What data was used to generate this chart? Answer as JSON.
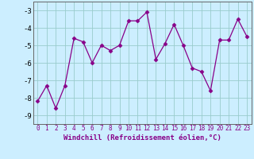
{
  "x": [
    0,
    1,
    2,
    3,
    4,
    5,
    6,
    7,
    8,
    9,
    10,
    11,
    12,
    13,
    14,
    15,
    16,
    17,
    18,
    19,
    20,
    21,
    22,
    23
  ],
  "y": [
    -8.2,
    -7.3,
    -8.6,
    -7.3,
    -4.6,
    -4.8,
    -6.0,
    -5.0,
    -5.3,
    -5.0,
    -3.6,
    -3.6,
    -3.1,
    -5.8,
    -4.9,
    -3.8,
    -5.0,
    -6.3,
    -6.5,
    -7.6,
    -4.7,
    -4.7,
    -3.5,
    -4.5
  ],
  "line_color": "#880088",
  "marker": "D",
  "marker_size": 2.5,
  "bg_color": "#cceeff",
  "grid_color": "#99cccc",
  "xlabel": "Windchill (Refroidissement éolien,°C)",
  "xlabel_fontsize": 6.5,
  "xtick_fontsize": 5.5,
  "ytick_fontsize": 6.5,
  "ylim": [
    -9.5,
    -2.5
  ],
  "yticks": [
    -9,
    -8,
    -7,
    -6,
    -5,
    -4,
    -3
  ],
  "xlim": [
    -0.5,
    23.5
  ]
}
